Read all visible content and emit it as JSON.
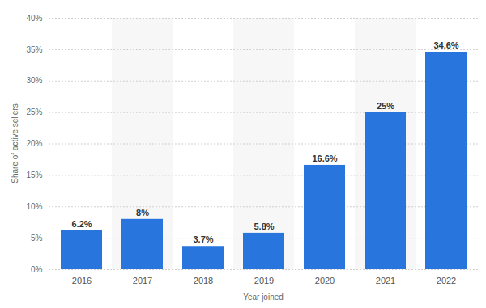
{
  "chart_data": {
    "type": "bar",
    "x_label": "Year joined",
    "y_label": "Share of active sellers",
    "categories": [
      "2016",
      "2017",
      "2018",
      "2019",
      "2020",
      "2021",
      "2022"
    ],
    "values": [
      6.2,
      8,
      3.7,
      5.8,
      16.6,
      25,
      34.6
    ],
    "value_labels": [
      "6.2%",
      "8%",
      "3.7%",
      "5.8%",
      "16.6%",
      "25%",
      "34.6%"
    ],
    "color": "#2876dd",
    "ylim": [
      0,
      40
    ],
    "yticks": [
      {
        "value": 0,
        "label": "0%"
      },
      {
        "value": 5,
        "label": "5%"
      },
      {
        "value": 10,
        "label": "10%"
      },
      {
        "value": 15,
        "label": "15%"
      },
      {
        "value": 20,
        "label": "20%"
      },
      {
        "value": 25,
        "label": "25%"
      },
      {
        "value": 30,
        "label": "30%"
      },
      {
        "value": 35,
        "label": "35%"
      },
      {
        "value": 40,
        "label": "40%"
      }
    ],
    "grid": true,
    "data_labels": true
  }
}
